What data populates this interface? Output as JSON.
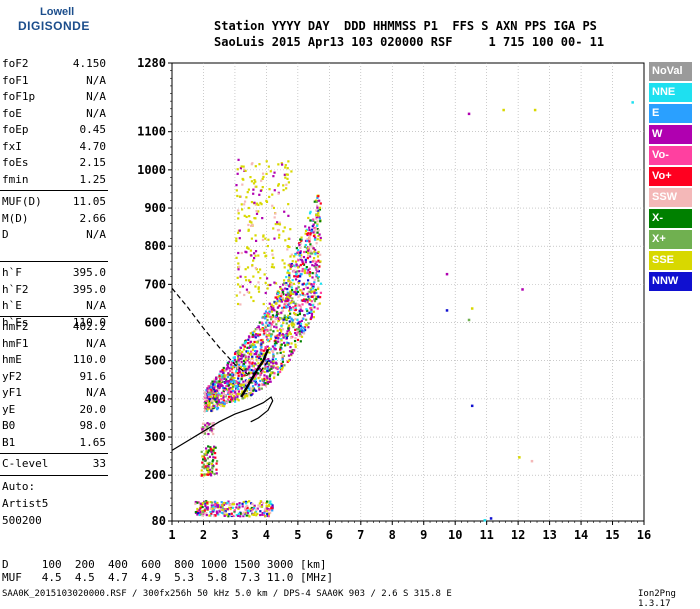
{
  "logo": {
    "line1": "Lowell",
    "line2": "DIGISONDE"
  },
  "header": {
    "line1": "Station YYYY DAY  DDD HHMMSS P1  FFS S AXN PPS IGA PS",
    "line2": "SaoLuis 2015 Apr13 103 020000 RSF     1 715 100 00- 11"
  },
  "params": {
    "group1": [
      {
        "name": "foF2",
        "value": "4.150"
      },
      {
        "name": "foF1",
        "value": "N/A"
      },
      {
        "name": "foF1p",
        "value": "N/A"
      },
      {
        "name": "foE",
        "value": "N/A"
      },
      {
        "name": "foEp",
        "value": "0.45"
      },
      {
        "name": "fxI",
        "value": "4.70"
      },
      {
        "name": "foEs",
        "value": "2.15"
      },
      {
        "name": "fmin",
        "value": "1.25"
      }
    ],
    "group2": [
      {
        "name": "MUF(D)",
        "value": "11.05"
      },
      {
        "name": "M(D)",
        "value": "2.66"
      },
      {
        "name": "D",
        "value": "N/A"
      }
    ],
    "group3": [
      {
        "name": "h`F",
        "value": "395.0"
      },
      {
        "name": "h`F2",
        "value": "395.0"
      },
      {
        "name": "h`E",
        "value": "N/A"
      },
      {
        "name": "h`Es",
        "value": "110.0"
      }
    ],
    "group4": [
      {
        "name": "hmF2",
        "value": "402.2"
      },
      {
        "name": "hmF1",
        "value": "N/A"
      },
      {
        "name": "hmE",
        "value": "110.0"
      },
      {
        "name": "yF2",
        "value": "91.6"
      },
      {
        "name": "yF1",
        "value": "N/A"
      },
      {
        "name": "yE",
        "value": "20.0"
      },
      {
        "name": "B0",
        "value": "98.0"
      },
      {
        "name": "B1",
        "value": "1.65"
      }
    ],
    "group5": [
      {
        "name": "C-level",
        "value": "33"
      }
    ]
  },
  "notes": {
    "auto": "Auto:",
    "artist": "Artist5",
    "version": "500200"
  },
  "legend": [
    {
      "label": "NoVal",
      "color": "#9a9a9a"
    },
    {
      "label": "NNE",
      "color": "#1ee0f0"
    },
    {
      "label": "E",
      "color": "#2aa0ff"
    },
    {
      "label": "W",
      "color": "#b000b0"
    },
    {
      "label": "Vo-",
      "color": "#ff40a0"
    },
    {
      "label": "Vo+",
      "color": "#ff0020"
    },
    {
      "label": "SSW",
      "color": "#f4b8b8"
    },
    {
      "label": "X-",
      "color": "#008000"
    },
    {
      "label": "X+",
      "color": "#70b050"
    },
    {
      "label": "SSE",
      "color": "#d8d800"
    },
    {
      "label": "NNW",
      "color": "#1010d0"
    }
  ],
  "footer": {
    "d_row": "D     100  200  400  600  800 1000 1500 3000 [km]",
    "muf_row": "MUF   4.5  4.5  4.7  4.9  5.3  5.8  7.3 11.0 [MHz]",
    "info": "SAA0K_2015103020000.RSF / 300fx256h 50 kHz 5.0 km / DPS-4 SAA0K 903 / 2.6 S 315.8 E",
    "ion": "Ion2Png 1.3.17"
  },
  "chart_data": {
    "type": "scatter",
    "x_ticks": [
      1,
      2,
      3,
      4,
      5,
      6,
      7,
      8,
      9,
      10,
      11,
      12,
      13,
      14,
      15,
      16
    ],
    "y_ticks": [
      80,
      200,
      300,
      400,
      500,
      600,
      700,
      800,
      900,
      1000,
      1100,
      1280
    ],
    "xlim": [
      1,
      16
    ],
    "ylim": [
      80,
      1280
    ],
    "grid": true,
    "isolated_points": [
      {
        "x": 10.4,
        "y": 1150,
        "sig": "W"
      },
      {
        "x": 11.5,
        "y": 1160,
        "sig": "SSE"
      },
      {
        "x": 12.5,
        "y": 1160,
        "sig": "SSE"
      },
      {
        "x": 15.6,
        "y": 1180,
        "sig": "NNE"
      },
      {
        "x": 9.7,
        "y": 730,
        "sig": "W"
      },
      {
        "x": 9.7,
        "y": 635,
        "sig": "NNW"
      },
      {
        "x": 12.1,
        "y": 690,
        "sig": "W"
      },
      {
        "x": 10.5,
        "y": 640,
        "sig": "SSE"
      },
      {
        "x": 10.4,
        "y": 610,
        "sig": "X+"
      },
      {
        "x": 10.5,
        "y": 385,
        "sig": "NNW"
      },
      {
        "x": 12.0,
        "y": 250,
        "sig": "SSE"
      },
      {
        "x": 12.4,
        "y": 240,
        "sig": "SSW"
      },
      {
        "x": 10.9,
        "y": 85,
        "sig": "NNE"
      },
      {
        "x": 11.1,
        "y": 90,
        "sig": "NNW"
      }
    ],
    "trace_solid": [
      [
        1,
        265
      ],
      [
        1.5,
        290
      ],
      [
        2,
        315
      ],
      [
        2.5,
        340
      ],
      [
        3,
        360
      ],
      [
        3.5,
        375
      ],
      [
        3.9,
        390
      ],
      [
        4.15,
        405
      ],
      [
        4.2,
        395
      ],
      [
        4.05,
        370
      ],
      [
        3.75,
        350
      ],
      [
        3.5,
        340
      ]
    ],
    "trace_dashed": [
      [
        1,
        690
      ],
      [
        1.5,
        640
      ],
      [
        2,
        585
      ],
      [
        2.5,
        535
      ],
      [
        3,
        490
      ],
      [
        3.4,
        465
      ],
      [
        3.8,
        470
      ],
      [
        4.1,
        505
      ]
    ],
    "trace_bold": [
      [
        3.2,
        405
      ],
      [
        3.45,
        440
      ],
      [
        3.7,
        475
      ],
      [
        3.9,
        500
      ],
      [
        4.05,
        530
      ]
    ]
  }
}
